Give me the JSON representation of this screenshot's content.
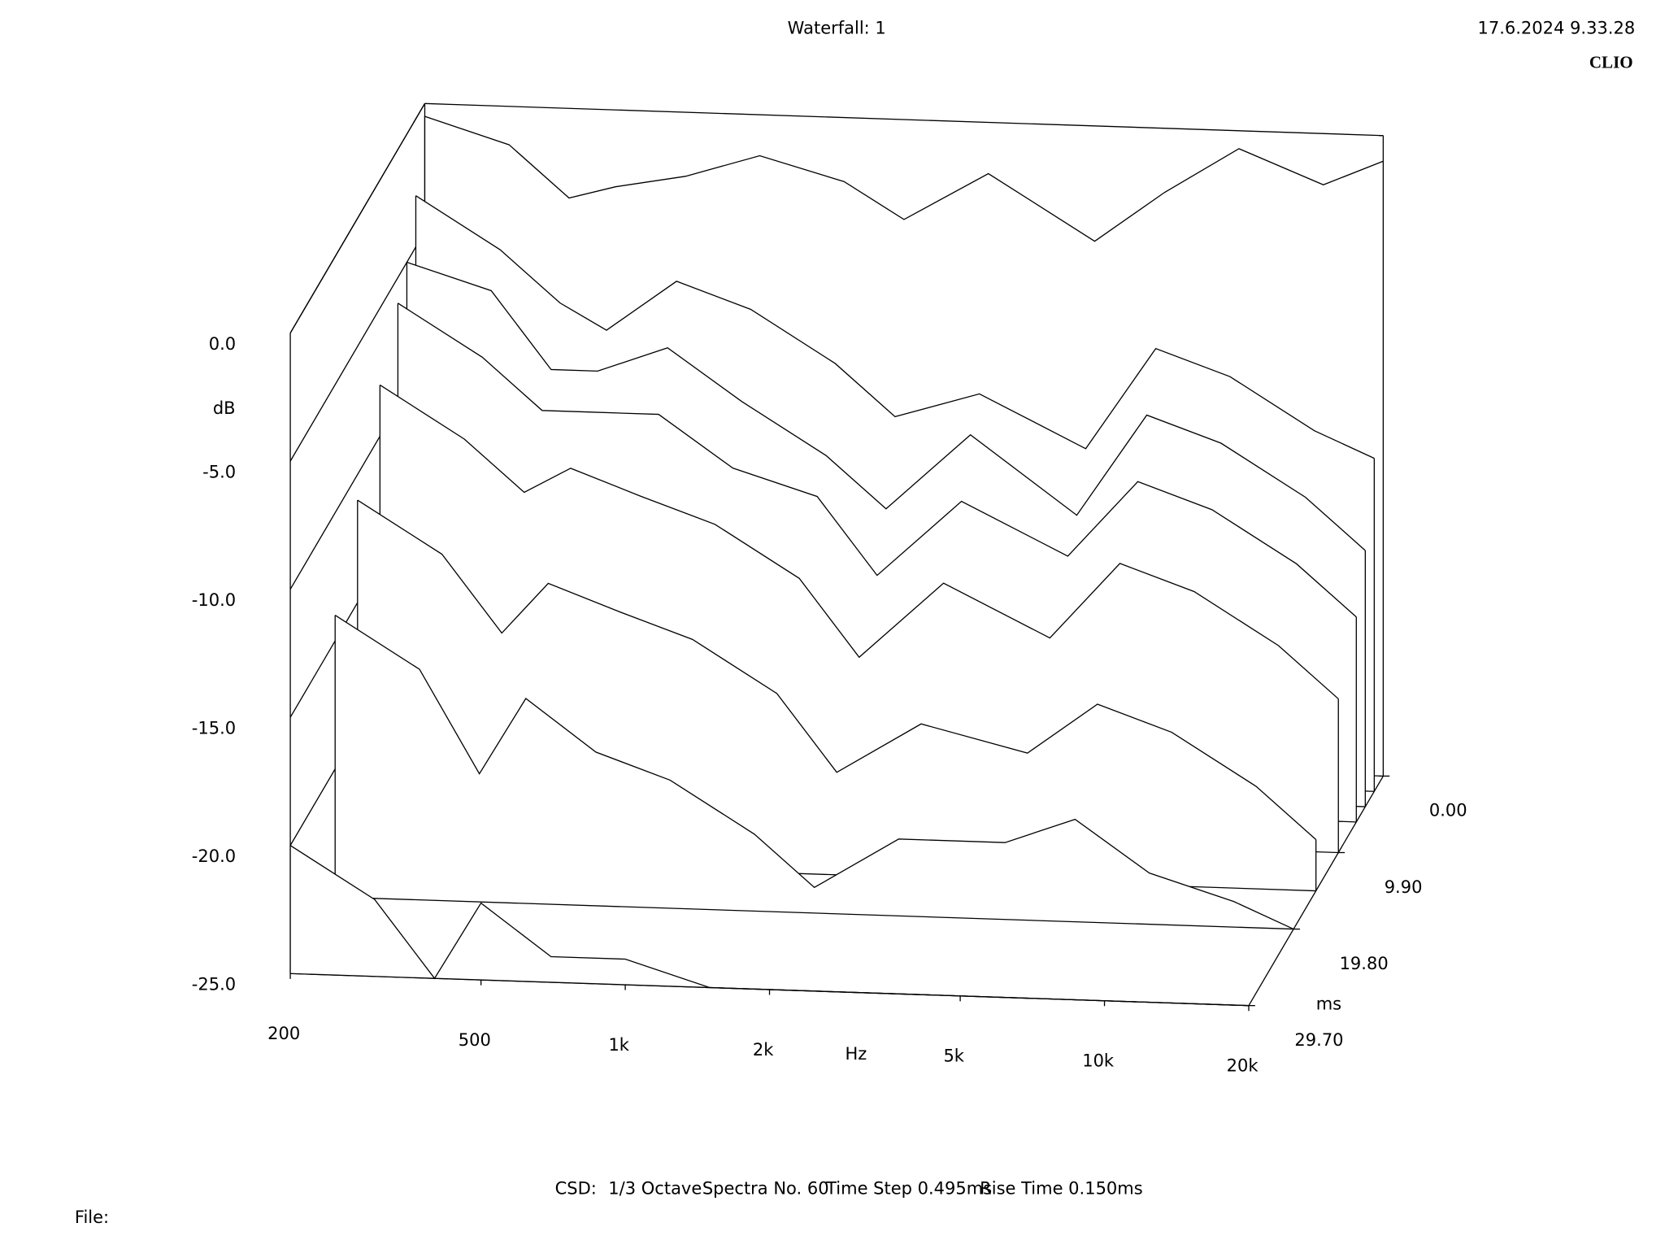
{
  "chart_data": {
    "type": "waterfall",
    "title": "Waterfall: 1",
    "timestamp": "17.6.2024 9.33.28",
    "brand": "CLIO",
    "x_label": "Hz",
    "y_label": "dB",
    "z_label": "ms",
    "info": [
      "CSD:",
      "1/3 Octave",
      "Spectra No. 60",
      "Time Step 0.495ms",
      "Rise Time 0.150ms"
    ],
    "file_label": "File:",
    "color": "#000000",
    "xscale": "log",
    "xlim": [
      200,
      20000
    ],
    "xticks": [
      200,
      500,
      {
        "value": 1000,
        "label": "1k"
      },
      {
        "value": 2000,
        "label": "2k"
      },
      {
        "value": 5000,
        "label": "5k"
      },
      {
        "value": 10000,
        "label": "10k"
      },
      {
        "value": 20000,
        "label": "20k"
      }
    ],
    "ylim": [
      -25,
      0
    ],
    "yticks": [
      {
        "value": 0,
        "label": "0.0"
      },
      {
        "value": -5,
        "label": "-5.0"
      },
      {
        "value": -10,
        "label": "-10.0"
      },
      {
        "value": -15,
        "label": "-15.0"
      },
      {
        "value": -20,
        "label": "-20.0"
      },
      {
        "value": -25,
        "label": "-25.0"
      }
    ],
    "zlim": [
      0,
      29.7
    ],
    "zticks": [
      {
        "value": 0,
        "label": "0.00"
      },
      {
        "value": 9.9,
        "label": "9.90"
      },
      {
        "value": 19.8,
        "label": "19.80"
      },
      {
        "value": 29.7,
        "label": "29.70"
      }
    ],
    "x": [
      200,
      300,
      400,
      500,
      700,
      1000,
      1500,
      2000,
      3000,
      5000,
      7000,
      10000,
      15000,
      20000
    ],
    "z": [
      0,
      1.98,
      3.96,
      5.94,
      9.9,
      14.85,
      19.8,
      29.7
    ],
    "series": [
      {
        "values": [
          -0.5,
          -1.5,
          -3.5,
          -3,
          -2.5,
          -1.6,
          -2.5,
          -3.9,
          -2,
          -4.5,
          -2.5,
          -0.7,
          -2,
          -1
        ]
      },
      {
        "values": [
          -3,
          -5,
          -7,
          -8,
          -6,
          -7,
          -9,
          -11,
          -10,
          -12,
          -8,
          -9,
          -11,
          -12
        ]
      },
      {
        "values": [
          -5,
          -6,
          -9,
          -9,
          -8,
          -10,
          -12,
          -14,
          -11,
          -14,
          -10,
          -11,
          -13,
          -15
        ]
      },
      {
        "values": [
          -6,
          -8,
          -10,
          -10,
          -10,
          -12,
          -13,
          -16,
          -13,
          -15,
          -12,
          -13,
          -15,
          -17
        ]
      },
      {
        "values": [
          -8,
          -10,
          -12,
          -11,
          -12,
          -13,
          -15,
          -18,
          -15,
          -17,
          -14,
          -15,
          -17,
          -19
        ]
      },
      {
        "values": [
          -11,
          -13,
          -16,
          -14,
          -15,
          -16,
          -18,
          -21,
          -19,
          -20,
          -18,
          -19,
          -21,
          -23
        ]
      },
      {
        "values": [
          -14,
          -16,
          -20,
          -17,
          -19,
          -20,
          -22,
          -24,
          -22,
          -22,
          -21,
          -23,
          -24,
          -25
        ]
      },
      {
        "values": [
          -20,
          -22,
          -25,
          -22,
          -24,
          -24,
          -25,
          -25,
          -25,
          -25,
          -25,
          -25,
          -25,
          -25
        ]
      }
    ]
  }
}
